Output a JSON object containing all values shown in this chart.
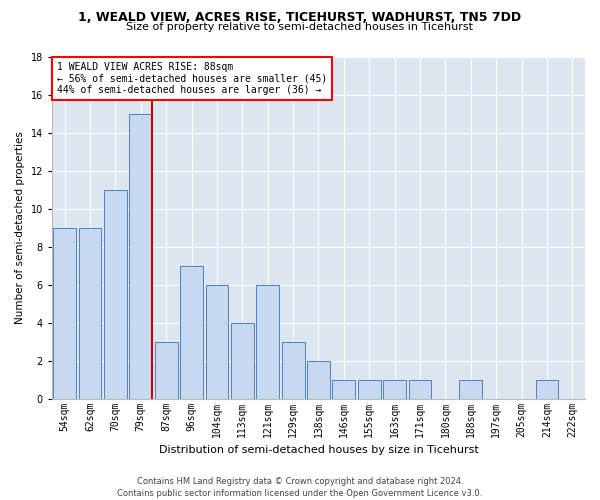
{
  "title1": "1, WEALD VIEW, ACRES RISE, TICEHURST, WADHURST, TN5 7DD",
  "title2": "Size of property relative to semi-detached houses in Ticehurst",
  "xlabel": "Distribution of semi-detached houses by size in Ticehurst",
  "ylabel": "Number of semi-detached properties",
  "footnote": "Contains HM Land Registry data © Crown copyright and database right 2024.\nContains public sector information licensed under the Open Government Licence v3.0.",
  "bar_labels": [
    "54sqm",
    "62sqm",
    "70sqm",
    "79sqm",
    "87sqm",
    "96sqm",
    "104sqm",
    "113sqm",
    "121sqm",
    "129sqm",
    "138sqm",
    "146sqm",
    "155sqm",
    "163sqm",
    "171sqm",
    "180sqm",
    "188sqm",
    "197sqm",
    "205sqm",
    "214sqm",
    "222sqm"
  ],
  "bar_values": [
    9,
    9,
    11,
    15,
    3,
    7,
    6,
    4,
    6,
    3,
    2,
    1,
    1,
    1,
    1,
    0,
    1,
    0,
    0,
    1,
    0
  ],
  "property_bar_index": 3,
  "property_label": "1 WEALD VIEW ACRES RISE: 88sqm",
  "pct_smaller": 56,
  "count_smaller": 45,
  "pct_larger": 44,
  "count_larger": 36,
  "bar_color": "#c6d9f0",
  "bar_edge_color": "#4f81bd",
  "vline_color": "#cc0000",
  "ylim": [
    0,
    18
  ],
  "yticks": [
    0,
    2,
    4,
    6,
    8,
    10,
    12,
    14,
    16,
    18
  ],
  "plot_bg_color": "#dce6f1",
  "grid_color": "#ffffff",
  "title1_fontsize": 9,
  "title2_fontsize": 8,
  "xlabel_fontsize": 8,
  "ylabel_fontsize": 7.5,
  "tick_fontsize": 7,
  "annot_fontsize": 7,
  "footnote_fontsize": 6
}
